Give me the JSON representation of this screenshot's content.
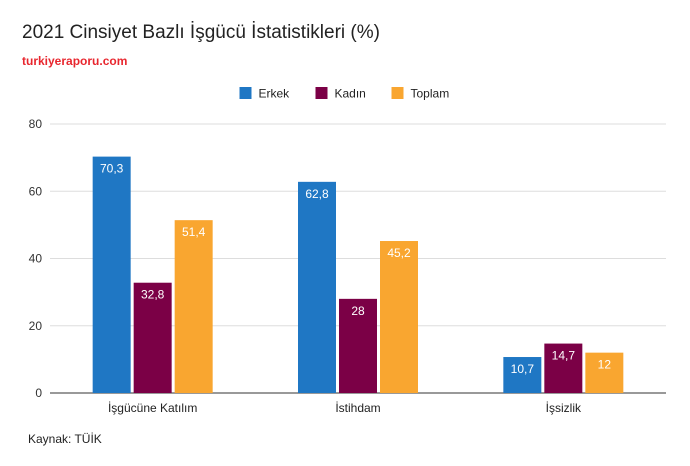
{
  "header": {
    "title": "2021 Cinsiyet Bazlı İşgücü İstatistikleri (%)",
    "subtitle": "turkiyeraporu.com"
  },
  "footer": {
    "source": "Kaynak: TÜİK"
  },
  "colors": {
    "erkek": "#1f77c4",
    "kadin": "#7b0046",
    "toplam": "#f9a630",
    "grid": "#dddddd",
    "axis": "#333333"
  },
  "chart_data": {
    "type": "bar",
    "categories": [
      "İşgücüne Katılım",
      "İstihdam",
      "İşsizlik"
    ],
    "series": [
      {
        "name": "Erkek",
        "values": [
          70.3,
          62.8,
          10.7
        ],
        "labels": [
          "70,3",
          "62,8",
          "10,7"
        ]
      },
      {
        "name": "Kadın",
        "values": [
          32.8,
          28,
          14.7
        ],
        "labels": [
          "32,8",
          "28",
          "14,7"
        ]
      },
      {
        "name": "Toplam",
        "values": [
          51.4,
          45.2,
          12
        ],
        "labels": [
          "51,4",
          "45,2",
          "12"
        ]
      }
    ],
    "ylim": [
      0,
      80
    ],
    "yticks": [
      0,
      20,
      40,
      60,
      80
    ],
    "grid": true,
    "legend": "top-center"
  }
}
